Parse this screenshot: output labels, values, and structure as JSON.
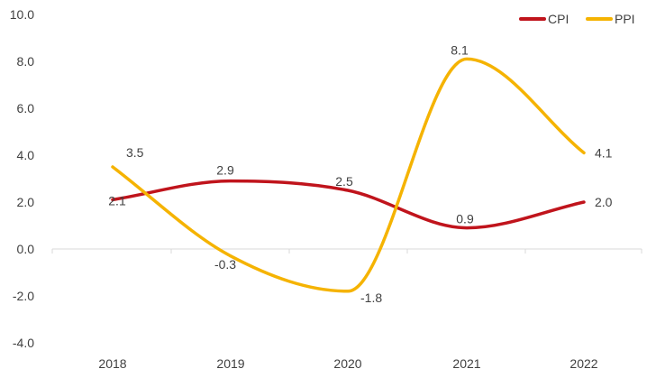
{
  "chart_data": {
    "type": "line",
    "title": "",
    "xlabel": "",
    "ylabel": "",
    "categories": [
      "2018",
      "2019",
      "2020",
      "2021",
      "2022"
    ],
    "ylim": [
      -4.0,
      10.0
    ],
    "yticks": [
      "-4.0",
      "-2.0",
      "0.0",
      "2.0",
      "4.0",
      "6.0",
      "8.0",
      "10.0"
    ],
    "grid": false,
    "legend_position": "top-right",
    "series": [
      {
        "name": "CPI",
        "color": "#c0141c",
        "values": [
          2.1,
          2.9,
          2.5,
          0.9,
          2.0
        ],
        "labels": [
          "2.1",
          "2.9",
          "2.5",
          "0.9",
          "2.0"
        ]
      },
      {
        "name": "PPI",
        "color": "#f5b301",
        "values": [
          3.5,
          -0.3,
          -1.8,
          8.1,
          4.1
        ],
        "labels": [
          "3.5",
          "-0.3",
          "-1.8",
          "8.1",
          "4.1"
        ]
      }
    ]
  }
}
